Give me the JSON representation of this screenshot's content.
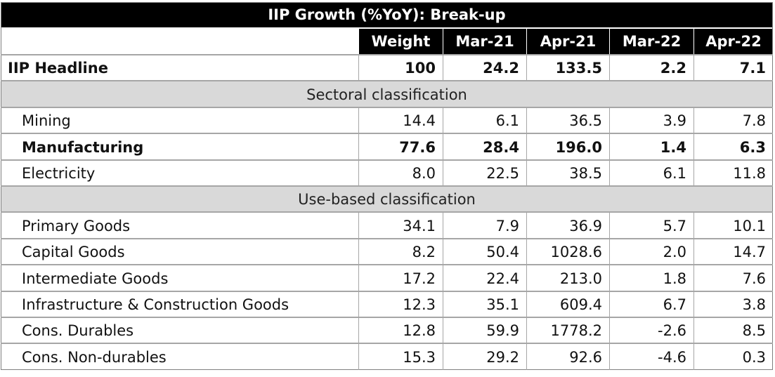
{
  "chart_data": {
    "type": "table",
    "title": "IIP Growth (%YoY): Break-up",
    "columns": [
      "",
      "Weight",
      "Mar-21",
      "Apr-21",
      "Mar-22",
      "Apr-22"
    ],
    "headline": {
      "label": "IIP Headline",
      "values": [
        "100",
        "24.2",
        "133.5",
        "2.2",
        "7.1"
      ]
    },
    "sections": [
      {
        "name": "Sectoral classification",
        "rows": [
          {
            "label": "Mining",
            "values": [
              "14.4",
              "6.1",
              "36.5",
              "3.9",
              "7.8"
            ],
            "bold": false
          },
          {
            "label": "Manufacturing",
            "values": [
              "77.6",
              "28.4",
              "196.0",
              "1.4",
              "6.3"
            ],
            "bold": true
          },
          {
            "label": "Electricity",
            "values": [
              "8.0",
              "22.5",
              "38.5",
              "6.1",
              "11.8"
            ],
            "bold": false
          }
        ]
      },
      {
        "name": "Use-based classification",
        "rows": [
          {
            "label": "Primary Goods",
            "values": [
              "34.1",
              "7.9",
              "36.9",
              "5.7",
              "10.1"
            ],
            "bold": false
          },
          {
            "label": "Capital Goods",
            "values": [
              "8.2",
              "50.4",
              "1028.6",
              "2.0",
              "14.7"
            ],
            "bold": false
          },
          {
            "label": "Intermediate Goods",
            "values": [
              "17.2",
              "22.4",
              "213.0",
              "1.8",
              "7.6"
            ],
            "bold": false
          },
          {
            "label": "Infrastructure & Construction Goods",
            "values": [
              "12.3",
              "35.1",
              "609.4",
              "6.7",
              "3.8"
            ],
            "bold": false
          },
          {
            "label": "Cons. Durables",
            "values": [
              "12.8",
              "59.9",
              "1778.2",
              "-2.6",
              "8.5"
            ],
            "bold": false
          },
          {
            "label": "Cons. Non-durables",
            "values": [
              "15.3",
              "29.2",
              "92.6",
              "-4.6",
              "0.3"
            ],
            "bold": false
          }
        ]
      }
    ],
    "colors": {
      "header_bg": "#000000",
      "header_text": "#ffffff",
      "section_bg": "#d9d9d9",
      "grid": "#a6a6a6"
    }
  }
}
